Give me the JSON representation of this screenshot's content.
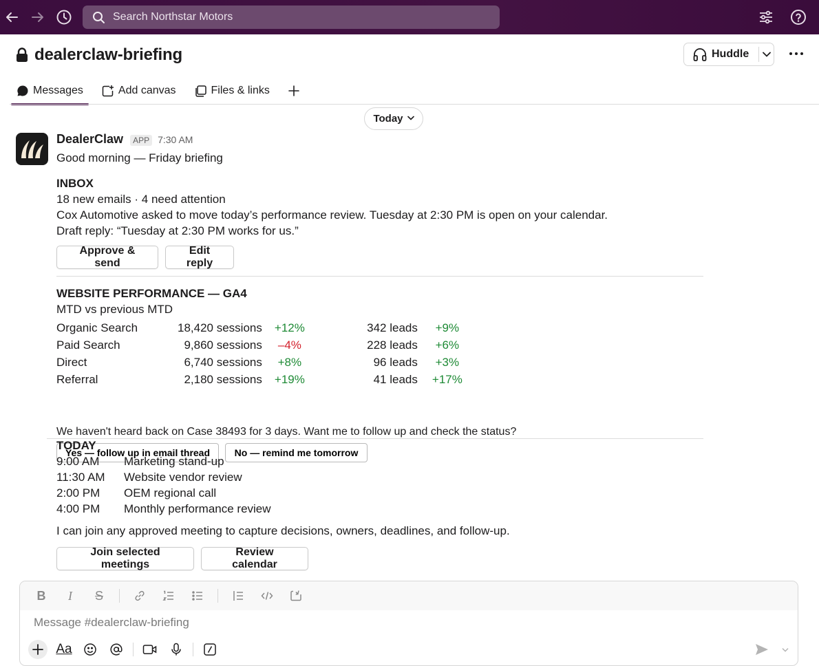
{
  "topbar": {
    "search_placeholder": "Search Northstar Motors"
  },
  "channel": {
    "name": "dealerclaw-briefing",
    "huddle_label": "Huddle"
  },
  "tabs": [
    {
      "label": "Messages"
    },
    {
      "label": "Add canvas"
    },
    {
      "label": "Files & links"
    }
  ],
  "date_divider": "Today",
  "message": {
    "sender": "DealerClaw",
    "badge": "APP",
    "time": "7:30 AM",
    "greeting": "Good morning — Friday briefing",
    "inbox": {
      "title": "INBOX",
      "summary": "18 new emails · 4 need attention",
      "detail": "Cox Automotive asked to move today’s performance review. Tuesday at 2:30 PM is open on your calendar.",
      "draft": "Draft reply: “Tuesday at 2:30 PM works for us.”",
      "approve_label": "Approve & send",
      "edit_label": "Edit reply"
    },
    "website": {
      "title": "WEBSITE PERFORMANCE — GA4",
      "subtitle": "MTD vs previous MTD",
      "rows": [
        {
          "channel": "Organic Search",
          "sessions": "18,420 sessions",
          "sessions_change": "+12%",
          "leads": "342 leads",
          "leads_change": "+9%"
        },
        {
          "channel": "Paid Search",
          "sessions": "9,860 sessions",
          "sessions_change": "–4%",
          "leads": "228 leads",
          "leads_change": "+6%"
        },
        {
          "channel": "Direct",
          "sessions": "6,740 sessions",
          "sessions_change": "+8%",
          "leads": "96 leads",
          "leads_change": "+3%"
        },
        {
          "channel": "Referral",
          "sessions": "2,180 sessions",
          "sessions_change": "+19%",
          "leads": "41 leads",
          "leads_change": "+17%"
        }
      ],
      "colors": {
        "up": "#1e8a35",
        "down": "#d3202c"
      }
    },
    "followup": {
      "question": "We haven't heard back on Case 38493 for 3 days. Want me to follow up and check the status?",
      "yes_label": "Yes — follow up in email thread",
      "no_label": "No — remind me tomorrow"
    },
    "today": {
      "title": "TODAY",
      "events": [
        {
          "time": "9:00 AM",
          "title": "Marketing stand-up"
        },
        {
          "time": "11:30 AM",
          "title": "Website vendor review"
        },
        {
          "time": "2:00 PM",
          "title": "OEM regional call"
        },
        {
          "time": "4:00 PM",
          "title": "Monthly performance review"
        }
      ],
      "note": "I can join any approved meeting to capture decisions, owners, deadlines, and follow-up.",
      "join_label": "Join selected meetings",
      "review_label": "Review calendar"
    }
  },
  "composer": {
    "placeholder": "Message #dealerclaw-briefing",
    "format_icons": [
      "bold-icon",
      "italic-icon",
      "strikethrough-icon",
      "link-icon",
      "ordered-list-icon",
      "bulleted-list-icon",
      "blockquote-icon",
      "code-icon",
      "code-block-icon"
    ],
    "action_icons": [
      "plus-icon",
      "formatting-icon",
      "emoji-icon",
      "mention-icon",
      "video-icon",
      "microphone-icon",
      "slash-command-icon"
    ],
    "format_text": {
      "bold": "B",
      "italic": "I",
      "strike": "S",
      "aa": "Aa"
    }
  },
  "theme": {
    "sidebar": "#3f0e40",
    "accent": "#4a154b"
  }
}
